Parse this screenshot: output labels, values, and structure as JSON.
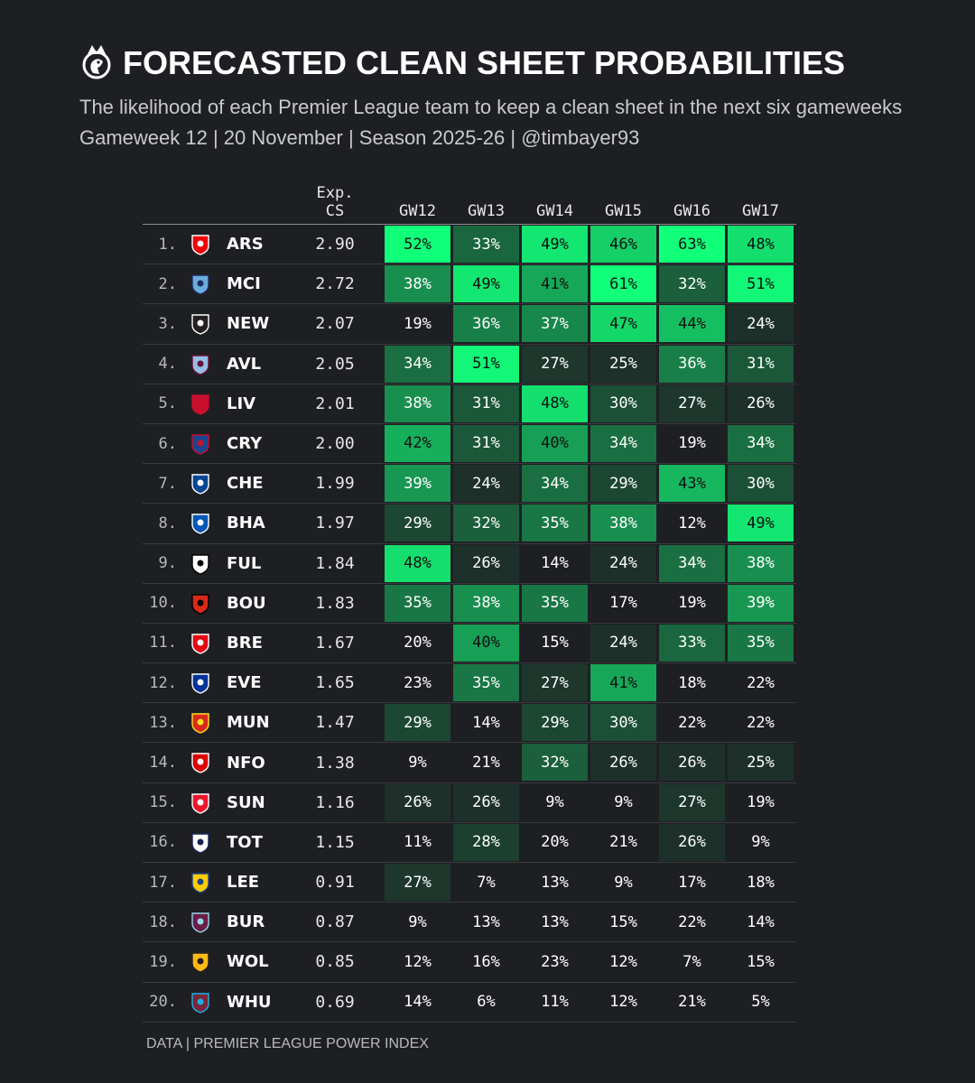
{
  "title": "FORECASTED CLEAN SHEET PROBABILITIES",
  "subtitle": "The likelihood of each Premier League team to keep a clean sheet in the next six gameweeks",
  "subinfo": "Gameweek 12 | 20 November | Season 2025-26 | @timbayer93",
  "footer": "DATA | PREMIER LEAGUE POWER INDEX",
  "logo_icon": "premier-league-lion-icon",
  "colors": {
    "background": "#1e1f23",
    "heat_low": "#1e1f23",
    "heat_high": "#12ff7a"
  },
  "chart_data": {
    "type": "heatmap",
    "title": "FORECASTED CLEAN SHEET PROBABILITIES",
    "columns": {
      "exp_line1": "Exp.",
      "exp_line2": "CS",
      "gameweeks": [
        "GW12",
        "GW13",
        "GW14",
        "GW15",
        "GW16",
        "GW17"
      ]
    },
    "rows": [
      {
        "rank": "1.",
        "team": "ARS",
        "crest": "arsenal-crest-icon",
        "exp": "2.90",
        "values": [
          52,
          33,
          49,
          46,
          63,
          48
        ]
      },
      {
        "rank": "2.",
        "team": "MCI",
        "crest": "man-city-crest-icon",
        "exp": "2.72",
        "values": [
          38,
          49,
          41,
          61,
          32,
          51
        ]
      },
      {
        "rank": "3.",
        "team": "NEW",
        "crest": "newcastle-crest-icon",
        "exp": "2.07",
        "values": [
          19,
          36,
          37,
          47,
          44,
          24
        ]
      },
      {
        "rank": "4.",
        "team": "AVL",
        "crest": "aston-villa-crest-icon",
        "exp": "2.05",
        "values": [
          34,
          51,
          27,
          25,
          36,
          31
        ]
      },
      {
        "rank": "5.",
        "team": "LIV",
        "crest": "liverpool-crest-icon",
        "exp": "2.01",
        "values": [
          38,
          31,
          48,
          30,
          27,
          26
        ]
      },
      {
        "rank": "6.",
        "team": "CRY",
        "crest": "crystal-palace-crest-icon",
        "exp": "2.00",
        "values": [
          42,
          31,
          40,
          34,
          19,
          34
        ]
      },
      {
        "rank": "7.",
        "team": "CHE",
        "crest": "chelsea-crest-icon",
        "exp": "1.99",
        "values": [
          39,
          24,
          34,
          29,
          43,
          30
        ]
      },
      {
        "rank": "8.",
        "team": "BHA",
        "crest": "brighton-crest-icon",
        "exp": "1.97",
        "values": [
          29,
          32,
          35,
          38,
          12,
          49
        ]
      },
      {
        "rank": "9.",
        "team": "FUL",
        "crest": "fulham-crest-icon",
        "exp": "1.84",
        "values": [
          48,
          26,
          14,
          24,
          34,
          38
        ]
      },
      {
        "rank": "10.",
        "team": "BOU",
        "crest": "bournemouth-crest-icon",
        "exp": "1.83",
        "values": [
          35,
          38,
          35,
          17,
          19,
          39
        ]
      },
      {
        "rank": "11.",
        "team": "BRE",
        "crest": "brentford-crest-icon",
        "exp": "1.67",
        "values": [
          20,
          40,
          15,
          24,
          33,
          35
        ]
      },
      {
        "rank": "12.",
        "team": "EVE",
        "crest": "everton-crest-icon",
        "exp": "1.65",
        "values": [
          23,
          35,
          27,
          41,
          18,
          22
        ]
      },
      {
        "rank": "13.",
        "team": "MUN",
        "crest": "man-united-crest-icon",
        "exp": "1.47",
        "values": [
          29,
          14,
          29,
          30,
          22,
          22
        ]
      },
      {
        "rank": "14.",
        "team": "NFO",
        "crest": "nottingham-forest-crest-icon",
        "exp": "1.38",
        "values": [
          9,
          21,
          32,
          26,
          26,
          25
        ]
      },
      {
        "rank": "15.",
        "team": "SUN",
        "crest": "sunderland-crest-icon",
        "exp": "1.16",
        "values": [
          26,
          26,
          9,
          9,
          27,
          19
        ]
      },
      {
        "rank": "16.",
        "team": "TOT",
        "crest": "tottenham-crest-icon",
        "exp": "1.15",
        "values": [
          11,
          28,
          20,
          21,
          26,
          9
        ]
      },
      {
        "rank": "17.",
        "team": "LEE",
        "crest": "leeds-crest-icon",
        "exp": "0.91",
        "values": [
          27,
          7,
          13,
          9,
          17,
          18
        ]
      },
      {
        "rank": "18.",
        "team": "BUR",
        "crest": "burnley-crest-icon",
        "exp": "0.87",
        "values": [
          9,
          13,
          13,
          15,
          22,
          14
        ]
      },
      {
        "rank": "19.",
        "team": "WOL",
        "crest": "wolves-crest-icon",
        "exp": "0.85",
        "values": [
          12,
          16,
          23,
          12,
          7,
          15
        ]
      },
      {
        "rank": "20.",
        "team": "WHU",
        "crest": "west-ham-crest-icon",
        "exp": "0.69",
        "values": [
          14,
          6,
          11,
          12,
          21,
          5
        ]
      }
    ]
  }
}
